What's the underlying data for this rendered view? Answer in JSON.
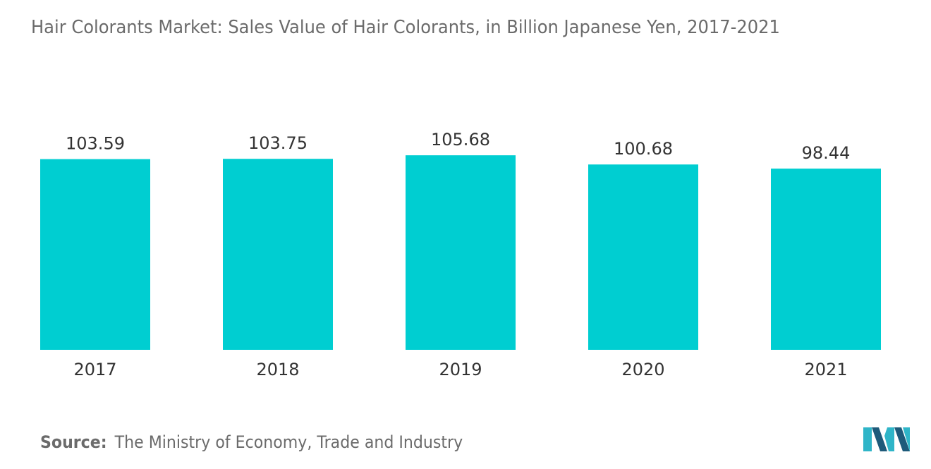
{
  "chart_data": {
    "type": "bar",
    "title": "Hair Colorants Market: Sales Value of Hair Colorants, in Billion Japanese Yen, 2017-2021",
    "categories": [
      "2017",
      "2018",
      "2019",
      "2020",
      "2021"
    ],
    "values": [
      103.59,
      103.75,
      105.68,
      100.68,
      98.44
    ],
    "value_labels": [
      "103.59",
      "103.75",
      "105.68",
      "100.68",
      "98.44"
    ],
    "xlabel": "",
    "ylabel": "",
    "grid": false,
    "bar_color": "#00CED1"
  },
  "source": {
    "label": "Source:",
    "text": "The Ministry of Economy, Trade and Industry"
  },
  "logo": {
    "icon": "mordor-intelligence-logo-icon",
    "colors": [
      "#1e5a7a",
      "#2fb5c8"
    ]
  }
}
